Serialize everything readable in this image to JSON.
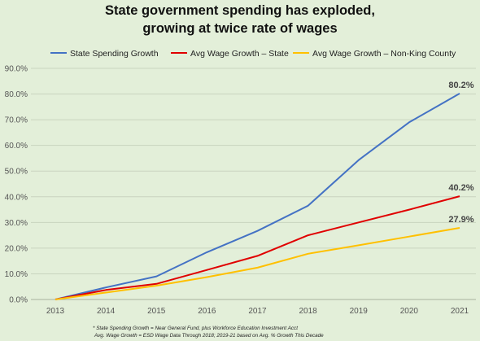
{
  "chart_data": {
    "type": "line",
    "title_lines": [
      "State government spending has exploded,",
      "growing at twice rate of wages"
    ],
    "x": [
      "2013",
      "2014",
      "2015",
      "2016",
      "2017",
      "2018",
      "2019",
      "2020",
      "2021"
    ],
    "ylim": [
      0,
      90
    ],
    "y_ticks": [
      "0.0%",
      "10.0%",
      "20.0%",
      "30.0%",
      "40.0%",
      "50.0%",
      "60.0%",
      "70.0%",
      "80.0%",
      "90.0%"
    ],
    "grid": true,
    "legend_position": "top",
    "series": [
      {
        "name": "State Spending Growth",
        "color": "#4472c4",
        "values": [
          0,
          4.7,
          9.0,
          18.4,
          26.7,
          36.5,
          54.3,
          69.0,
          80.2
        ],
        "end_label": "80.2%"
      },
      {
        "name": "Avg Wage Growth – State",
        "color": "#e00000",
        "values": [
          0,
          3.7,
          6.1,
          11.5,
          17.0,
          25.0,
          30.0,
          35.0,
          40.2
        ],
        "end_label": "40.2%"
      },
      {
        "name": "Avg Wage Growth – Non-King County",
        "color": "#ffc000",
        "values": [
          0,
          2.7,
          5.4,
          8.7,
          12.4,
          17.8,
          21.1,
          24.5,
          27.9
        ],
        "end_label": "27.9%"
      }
    ],
    "footnotes": [
      "* State Spending Growth = Near General Fund, plus Workforce Education Investment Acct",
      "Avg. Wage Growth = ESD Wage Data Through 2018; 2019-21 based on Avg. % Growth This Decade"
    ]
  }
}
